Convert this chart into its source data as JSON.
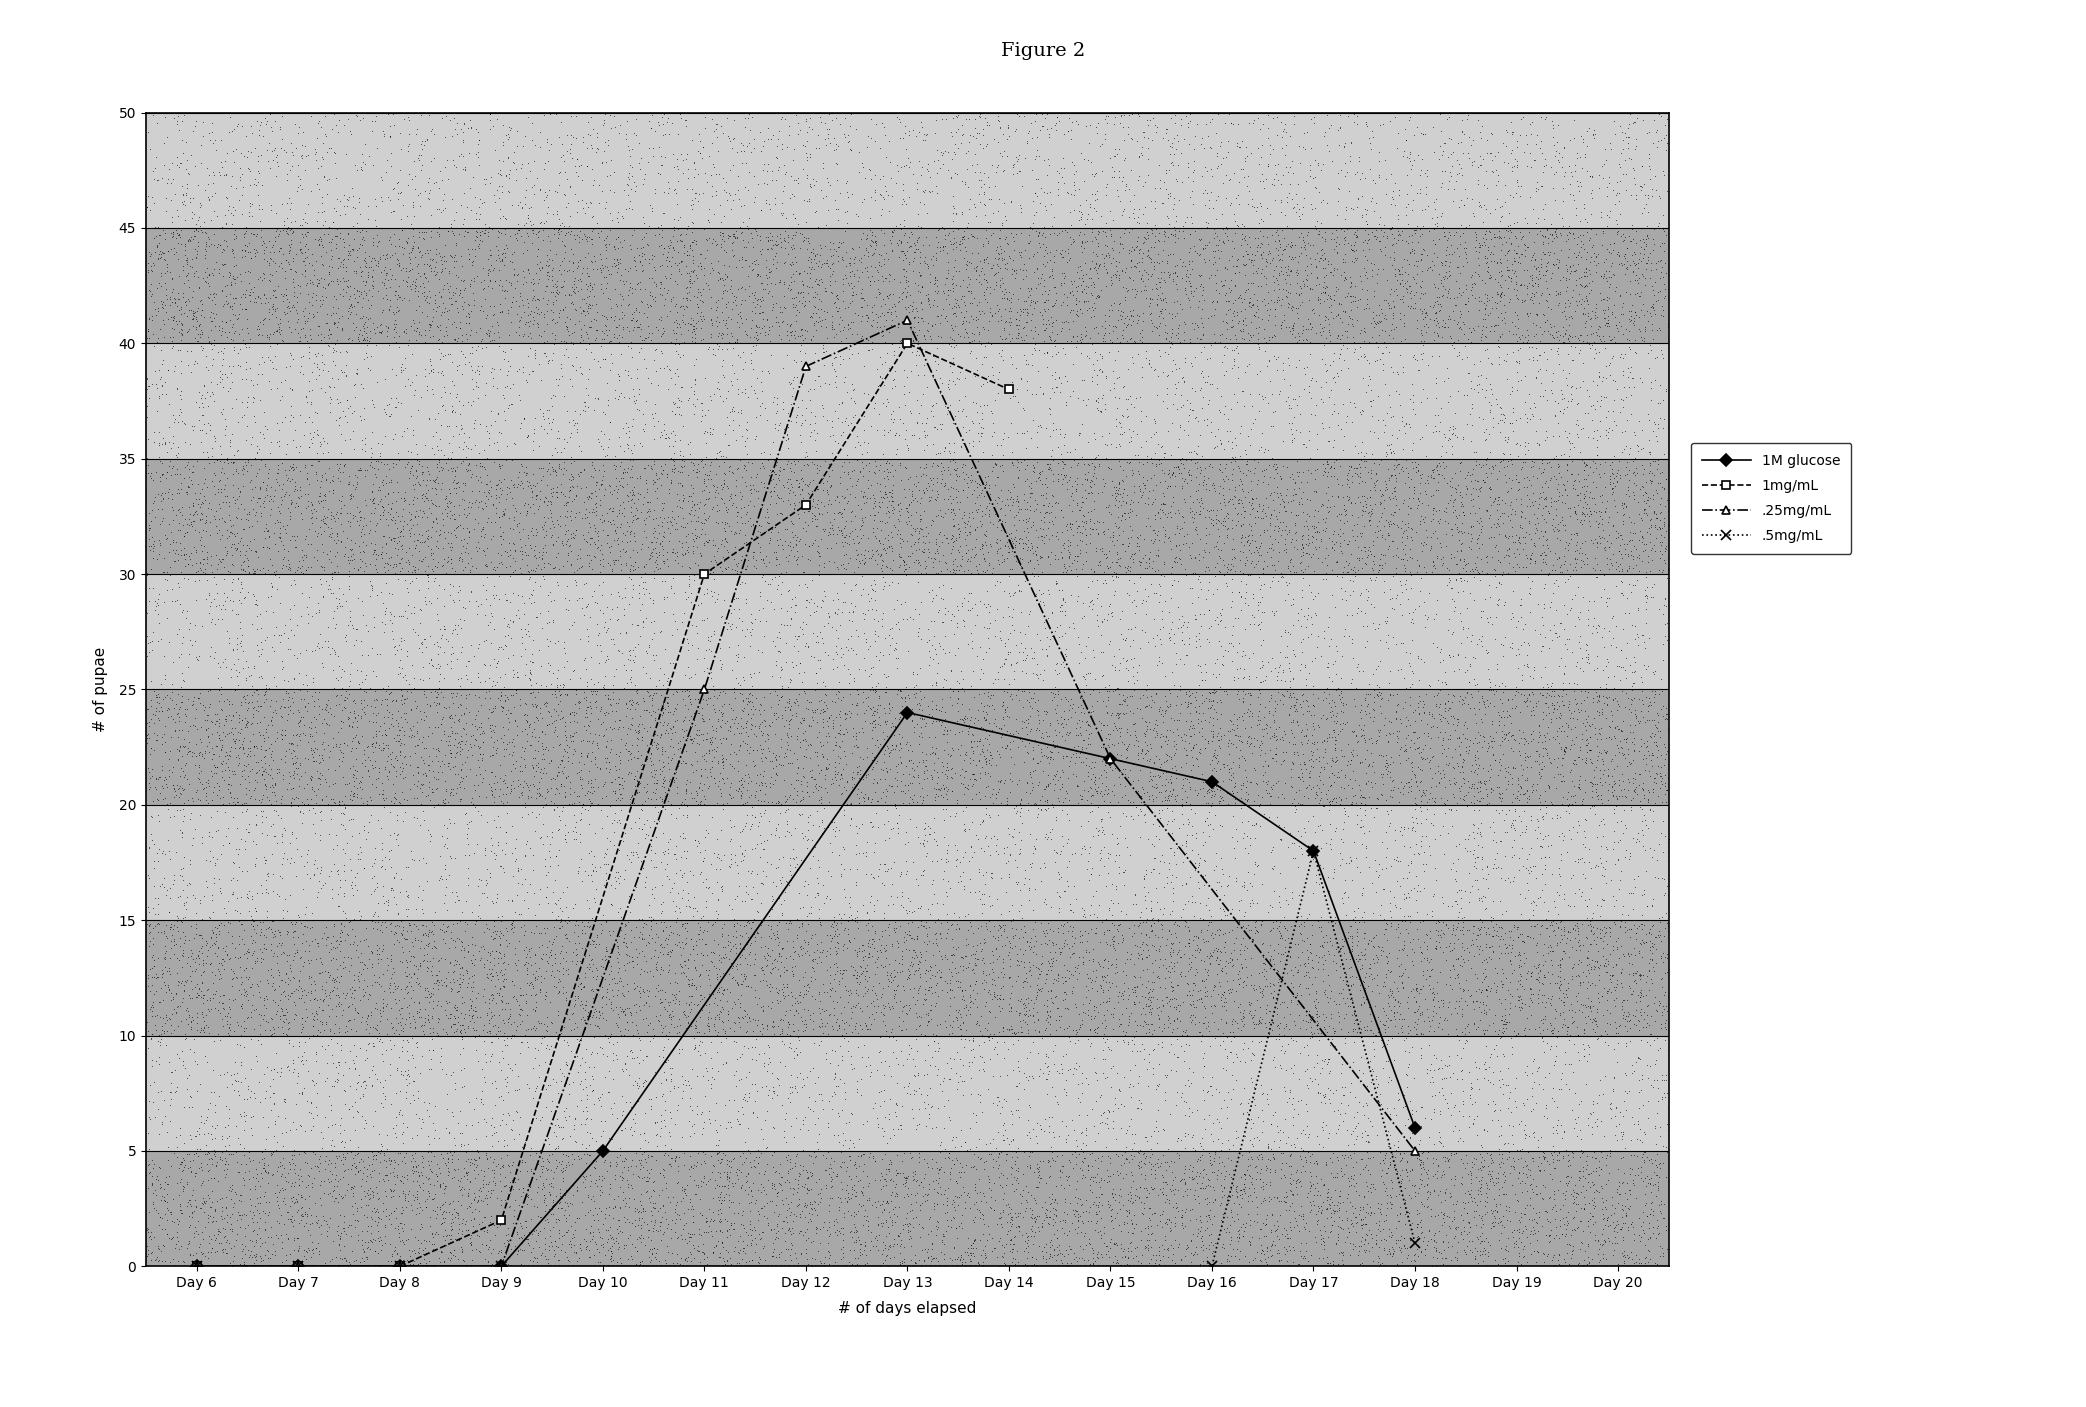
{
  "title": "Figure 2",
  "xlabel": "# of days elapsed",
  "ylabel": "# of pupae",
  "x_labels": [
    "Day 6",
    "Day 7",
    "Day 8",
    "Day 9",
    "Day 10",
    "Day 11",
    "Day 12",
    "Day 13",
    "Day 14",
    "Day 15",
    "Day 16",
    "Day 17",
    "Day 18",
    "Day 19",
    "Day 20"
  ],
  "x_values": [
    6,
    7,
    8,
    9,
    10,
    11,
    12,
    13,
    14,
    15,
    16,
    17,
    18,
    19,
    20
  ],
  "ylim": [
    0,
    50
  ],
  "yticks": [
    0,
    5,
    10,
    15,
    20,
    25,
    30,
    35,
    40,
    45,
    50
  ],
  "series": [
    {
      "label": "1M glucose",
      "color": "#000000",
      "linestyle": "-",
      "marker": "D",
      "markersize": 6,
      "linewidth": 1.2,
      "markerfacecolor": "black",
      "markeredgecolor": "black",
      "x": [
        6,
        7,
        8,
        9,
        10,
        13,
        15,
        16,
        17,
        18
      ],
      "y": [
        0,
        0,
        0,
        0,
        5,
        24,
        22,
        21,
        18,
        6
      ]
    },
    {
      "label": "1mg/mL",
      "color": "#000000",
      "linestyle": "--",
      "marker": "s",
      "markersize": 6,
      "linewidth": 1.2,
      "markerfacecolor": "white",
      "markeredgecolor": "black",
      "x": [
        6,
        7,
        8,
        9,
        11,
        12,
        13,
        14
      ],
      "y": [
        0,
        0,
        0,
        2,
        30,
        33,
        40,
        38
      ]
    },
    {
      "label": ".25mg/mL",
      "color": "#000000",
      "linestyle": "-.",
      "marker": "^",
      "markersize": 6,
      "linewidth": 1.2,
      "markerfacecolor": "white",
      "markeredgecolor": "black",
      "x": [
        6,
        7,
        8,
        9,
        11,
        12,
        13,
        15,
        18
      ],
      "y": [
        0,
        0,
        0,
        0,
        25,
        39,
        41,
        22,
        5
      ]
    },
    {
      "label": ".5mg/mL",
      "color": "#000000",
      "linestyle": ":",
      "marker": "x",
      "markersize": 7,
      "linewidth": 1.2,
      "markerfacecolor": "black",
      "markeredgecolor": "black",
      "x": [
        6,
        7,
        8,
        9,
        16,
        17,
        18
      ],
      "y": [
        0,
        0,
        0,
        0,
        0,
        18,
        1
      ]
    }
  ],
  "band_colors": [
    "#b0b0b0",
    "#d8d8d8"
  ],
  "figure_background": "#ffffff",
  "title_fontsize": 14,
  "axis_fontsize": 11,
  "tick_fontsize": 10,
  "legend_fontsize": 10,
  "noise_density_dark": 8000,
  "noise_density_light": 3000
}
